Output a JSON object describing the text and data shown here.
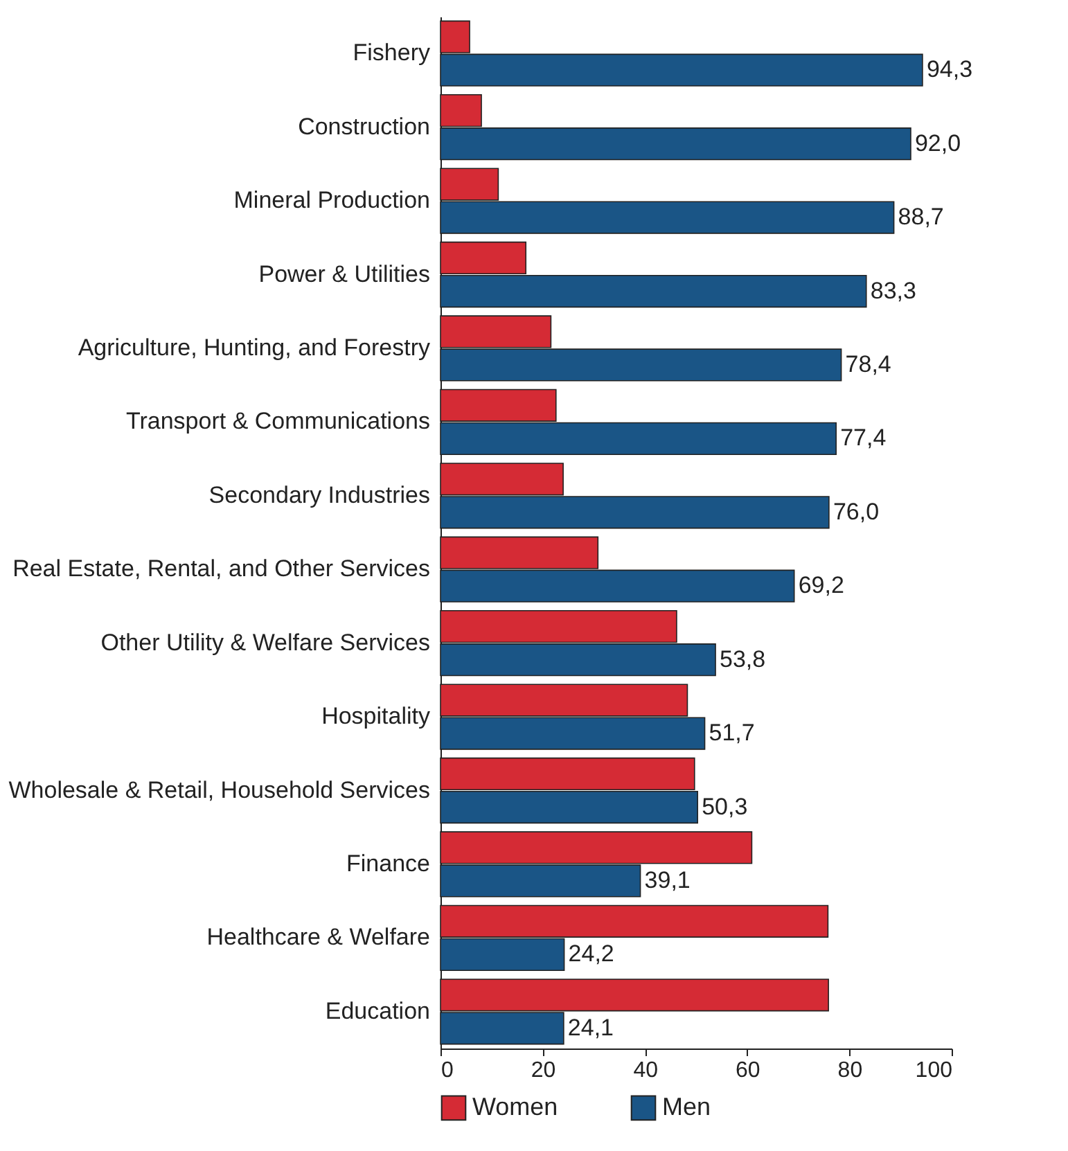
{
  "chart_data": {
    "type": "bar",
    "orientation": "horizontal",
    "categories": [
      "Fishery",
      "Construction",
      "Mineral Production",
      "Power & Utilities",
      "Agriculture, Hunting, and Forestry",
      "Transport & Communications",
      "Secondary Industries",
      "Real Estate, Rental, and Other Services",
      "Other Utility & Welfare Services",
      "Hospitality",
      "Wholesale & Retail, Household Services",
      "Finance",
      "Healthcare & Welfare",
      "Education"
    ],
    "series": [
      {
        "name": "Women",
        "color": "#d52b35",
        "values": [
          5.7,
          8.0,
          11.3,
          16.7,
          21.6,
          22.6,
          24.0,
          30.8,
          46.2,
          48.3,
          49.7,
          60.9,
          75.8,
          75.9
        ]
      },
      {
        "name": "Men",
        "color": "#1a5586",
        "values": [
          94.3,
          92.0,
          88.7,
          83.3,
          78.4,
          77.4,
          76.0,
          69.2,
          53.8,
          51.7,
          50.3,
          39.1,
          24.2,
          24.1
        ],
        "value_labels": [
          "94,3",
          "92,0",
          "88,7",
          "83,3",
          "78,4",
          "77,4",
          "76,0",
          "69,2",
          "53,8",
          "51,7",
          "50,3",
          "39,1",
          "24,2",
          "24,1"
        ]
      }
    ],
    "xlim": [
      0,
      100
    ],
    "xticks": [
      0,
      20,
      40,
      60,
      80,
      100
    ],
    "legend": "bottom"
  }
}
